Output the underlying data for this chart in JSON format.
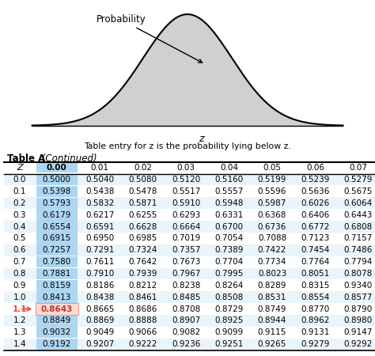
{
  "title_bold": "Table A",
  "title_italic": " (Continued)",
  "caption": "Table entry for z is the probability lying below z.",
  "col_headers": [
    "Z",
    "0.00",
    "0.01",
    "0.02",
    "0.03",
    "0.04",
    "0.05",
    "0.06",
    "0.07"
  ],
  "rows": [
    [
      "0.0",
      "0.5000",
      "0.5040",
      "0.5080",
      "0.5120",
      "0.5160",
      "0.5199",
      "0.5239",
      "0.5279"
    ],
    [
      "0.1",
      "0.5398",
      "0.5438",
      "0.5478",
      "0.5517",
      "0.5557",
      "0.5596",
      "0.5636",
      "0.5675"
    ],
    [
      "0.2",
      "0.5793",
      "0.5832",
      "0.5871",
      "0.5910",
      "0.5948",
      "0.5987",
      "0.6026",
      "0.6064"
    ],
    [
      "0.3",
      "0.6179",
      "0.6217",
      "0.6255",
      "0.6293",
      "0.6331",
      "0.6368",
      "0.6406",
      "0.6443"
    ],
    [
      "0.4",
      "0.6554",
      "0.6591",
      "0.6628",
      "0.6664",
      "0.6700",
      "0.6736",
      "0.6772",
      "0.6808"
    ],
    [
      "0.5",
      "0.6915",
      "0.6950",
      "0.6985",
      "0.7019",
      "0.7054",
      "0.7088",
      "0.7123",
      "0.7157"
    ],
    [
      "0.6",
      "0.7257",
      "0.7291",
      "0.7324",
      "0.7357",
      "0.7389",
      "0.7422",
      "0.7454",
      "0.7486"
    ],
    [
      "0.7",
      "0.7580",
      "0.7611",
      "0.7642",
      "0.7673",
      "0.7704",
      "0.7734",
      "0.7764",
      "0.7794"
    ],
    [
      "0.8",
      "0.7881",
      "0.7910",
      "0.7939",
      "0.7967",
      "0.7995",
      "0.8023",
      "0.8051",
      "0.8078"
    ],
    [
      "0.9",
      "0.8159",
      "0.8186",
      "0.8212",
      "0.8238",
      "0.8264",
      "0.8289",
      "0.8315",
      "0.9340"
    ],
    [
      "1.0",
      "0.8413",
      "0.8438",
      "0.8461",
      "0.8485",
      "0.8508",
      "0.8531",
      "0.8554",
      "0.8577"
    ],
    [
      "1.1",
      "0.8643",
      "0.8665",
      "0.8686",
      "0.8708",
      "0.8729",
      "0.8749",
      "0.8770",
      "0.8790"
    ],
    [
      "1.2",
      "0.8849",
      "0.8869",
      "0.8888",
      "0.8907",
      "0.8925",
      "0.8944",
      "0.8962",
      "0.8980"
    ],
    [
      "1.3",
      "0.9032",
      "0.9049",
      "0.9066",
      "0.9082",
      "0.9099",
      "0.9115",
      "0.9131",
      "0.9147"
    ],
    [
      "1.4",
      "0.9192",
      "0.9207",
      "0.9222",
      "0.9236",
      "0.9251",
      "0.9265",
      "0.9279",
      "0.9292"
    ]
  ],
  "highlight_row": 11,
  "highlight_col": 1,
  "col0_highlight_color": "#aed6f1",
  "highlight_cell_color": "#f1948a",
  "highlight_cell_bg": "#fadbd8",
  "row_alt_color": "#eaf4fb",
  "row_normal_color": "#ffffff",
  "curve_fill_color": "#d0d0d0",
  "background": "#ffffff",
  "red_color": "#e74c3c",
  "dark_red": "#c0392b"
}
